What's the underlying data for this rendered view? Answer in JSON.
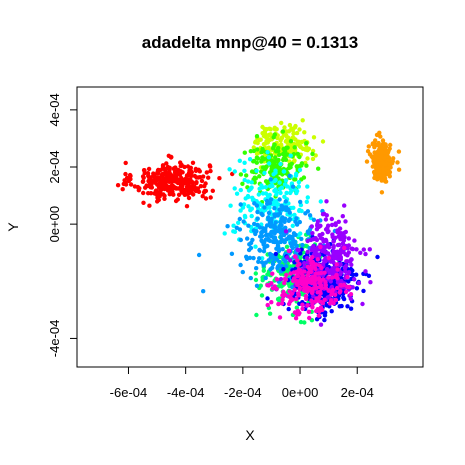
{
  "chart_data": {
    "type": "scatter",
    "title": "adadelta mnp@40 = 0.1313",
    "xlabel": "X",
    "ylabel": "Y",
    "xlim": [
      -0.00078,
      0.00043
    ],
    "ylim": [
      -0.0005,
      0.00048
    ],
    "xticks": [
      {
        "value": -0.0006,
        "label": "-6e-04"
      },
      {
        "value": -0.0004,
        "label": "-4e-04"
      },
      {
        "value": -0.0002,
        "label": "-2e-04"
      },
      {
        "value": 0.0,
        "label": "0e+00"
      },
      {
        "value": 0.0002,
        "label": "2e-04"
      }
    ],
    "yticks": [
      {
        "value": -0.0004,
        "label": "-4e-04"
      },
      {
        "value": 0.0,
        "label": "0e+00"
      },
      {
        "value": 0.0002,
        "label": "2e-04"
      },
      {
        "value": 0.0004,
        "label": "4e-04"
      }
    ],
    "grid": false,
    "legend": "none",
    "clusters": [
      {
        "color": "#FF0000",
        "center": [
          -0.00045,
          0.00015
        ],
        "spread": [
          0.00012,
          6e-05
        ],
        "count": 320
      },
      {
        "color": "#FF9900",
        "center": [
          0.00029,
          0.00022
        ],
        "spread": [
          3.5e-05,
          6e-05
        ],
        "count": 260
      },
      {
        "color": "#CCFF00",
        "center": [
          -6e-05,
          0.00028
        ],
        "spread": [
          9e-05,
          6e-05
        ],
        "count": 180
      },
      {
        "color": "#33FF00",
        "center": [
          -8e-05,
          0.0002
        ],
        "spread": [
          0.0001,
          8e-05
        ],
        "count": 170
      },
      {
        "color": "#00FF66",
        "center": [
          -2e-05,
          -0.00018
        ],
        "spread": [
          0.00011,
          0.00011
        ],
        "count": 200
      },
      {
        "color": "#00FFFF",
        "center": [
          -0.0001,
          8e-05
        ],
        "spread": [
          0.00012,
          0.00012
        ],
        "count": 200
      },
      {
        "color": "#0099FF",
        "center": [
          -8e-05,
          -5e-05
        ],
        "spread": [
          0.00012,
          0.00012
        ],
        "count": 240
      },
      {
        "color": "#0000FF",
        "center": [
          8e-05,
          -0.0002
        ],
        "spread": [
          0.00011,
          0.00011
        ],
        "count": 360
      },
      {
        "color": "#9900FF",
        "center": [
          0.0001,
          -0.00012
        ],
        "spread": [
          0.0001,
          0.00013
        ],
        "count": 260
      },
      {
        "color": "#FF00CC",
        "center": [
          4e-05,
          -0.00022
        ],
        "spread": [
          0.00011,
          9e-05
        ],
        "count": 200
      }
    ]
  }
}
